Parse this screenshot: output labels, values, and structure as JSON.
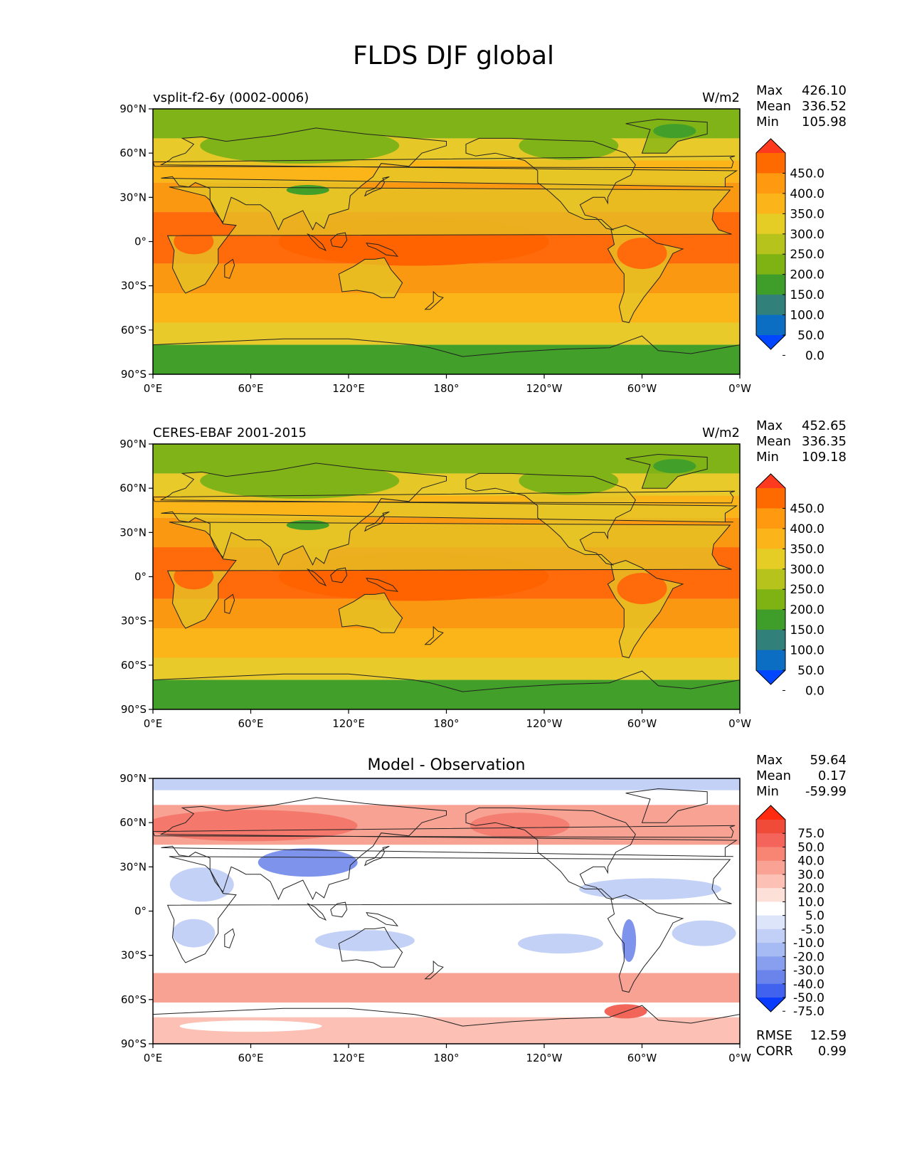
{
  "figure": {
    "title": "FLDS DJF global"
  },
  "chart_data": [
    {
      "type": "heatmap",
      "panel": "test",
      "title": "",
      "left_label": "vsplit-f2-6y (0002-0006)",
      "units": "W/m2",
      "stats": {
        "max_label": "Max",
        "max": "426.10",
        "mean_label": "Mean",
        "mean": "336.52",
        "min_label": "Min",
        "min": "105.98"
      },
      "lat_ticks": [
        "90°N",
        "60°N",
        "30°N",
        "0°",
        "30°S",
        "60°S",
        "90°S"
      ],
      "lon_ticks": [
        "0°E",
        "60°E",
        "120°E",
        "180°",
        "120°W",
        "60°W",
        "0°W"
      ],
      "colorbar": {
        "labels": [
          "450.0",
          "400.0",
          "350.0",
          "300.0",
          "250.0",
          "200.0",
          "150.0",
          "100.0",
          "50.0",
          "0.0"
        ],
        "colors": [
          "#ff3a1e",
          "#ff6a00",
          "#ff9a10",
          "#fbb41a",
          "#e6cd25",
          "#b5c31c",
          "#7fb314",
          "#3f9e2a",
          "#31807a",
          "#0b6ec2",
          "#0047ff"
        ]
      },
      "fields": {
        "land": "#e4c727",
        "tropics": "#ff6a0a",
        "subtropics": "#fb9812",
        "midlat": "#fbb519",
        "highlat": "#e8cb2a",
        "polar": "#7fb317",
        "ice": "#419f2a"
      }
    },
    {
      "type": "heatmap",
      "panel": "reference",
      "title": "",
      "left_label": "CERES-EBAF 2001-2015",
      "units": "W/m2",
      "stats": {
        "max_label": "Max",
        "max": "452.65",
        "mean_label": "Mean",
        "mean": "336.35",
        "min_label": "Min",
        "min": "109.18"
      },
      "lat_ticks": [
        "90°N",
        "60°N",
        "30°N",
        "0°",
        "30°S",
        "60°S",
        "90°S"
      ],
      "lon_ticks": [
        "0°E",
        "60°E",
        "120°E",
        "180°",
        "120°W",
        "60°W",
        "0°W"
      ],
      "colorbar": {
        "labels": [
          "450.0",
          "400.0",
          "350.0",
          "300.0",
          "250.0",
          "200.0",
          "150.0",
          "100.0",
          "50.0",
          "0.0"
        ],
        "colors": [
          "#ff3a1e",
          "#ff6a00",
          "#ff9a10",
          "#fbb41a",
          "#e6cd25",
          "#b5c31c",
          "#7fb314",
          "#3f9e2a",
          "#31807a",
          "#0b6ec2",
          "#0047ff"
        ]
      },
      "fields": {
        "land": "#e4c727",
        "tropics": "#ff6a0a",
        "subtropics": "#fb9812",
        "midlat": "#fbb519",
        "highlat": "#e8cb2a",
        "polar": "#7fb317",
        "ice": "#419f2a"
      }
    },
    {
      "type": "heatmap",
      "panel": "difference",
      "title": "Model - Observation",
      "left_label": "",
      "units": "",
      "stats": {
        "max_label": "Max",
        "max": "59.64",
        "mean_label": "Mean",
        "mean": "0.17",
        "min_label": "Min",
        "min": "-59.99"
      },
      "extra_stats": {
        "rmse_label": "RMSE",
        "rmse": "12.59",
        "corr_label": "CORR",
        "corr": "0.99"
      },
      "lat_ticks": [
        "90°N",
        "60°N",
        "30°N",
        "0°",
        "30°S",
        "60°S",
        "90°S"
      ],
      "lon_ticks": [
        "0°E",
        "60°E",
        "120°E",
        "180°",
        "120°W",
        "60°W",
        "0°W"
      ],
      "colorbar": {
        "labels": [
          "75.0",
          "50.0",
          "40.0",
          "30.0",
          "20.0",
          "10.0",
          "5.0",
          "-5.0",
          "-10.0",
          "-20.0",
          "-30.0",
          "-40.0",
          "-50.0",
          "-75.0"
        ],
        "colors": [
          "#ff2a10",
          "#f04a38",
          "#f5645a",
          "#f88474",
          "#faa294",
          "#fcc0b4",
          "#fde0d8",
          "#ffffff",
          "#dde5fb",
          "#c2d0f7",
          "#a6bbf3",
          "#889fef",
          "#6a84ec",
          "#4062ee",
          "#0a3cff"
        ]
      },
      "fields": {
        "background": "#ffffff",
        "warm": "#f8a294",
        "warm_strong": "#f2665a",
        "cool": "#c4d1f6",
        "cool_strong": "#7d93ec"
      }
    }
  ]
}
